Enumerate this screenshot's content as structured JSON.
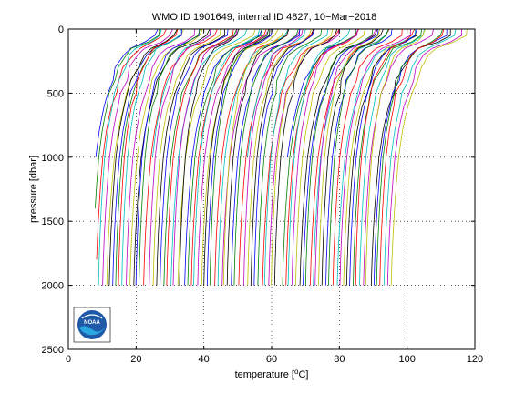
{
  "chart_data": {
    "type": "line",
    "title": "WMO ID 1901649, internal ID 4827, 10−Mar−2018",
    "xlabel_pre": "temperature [",
    "xlabel_sup": "o",
    "xlabel_post": "C]",
    "ylabel": "pressure [dbar]",
    "xlim": [
      0,
      120
    ],
    "ylim": [
      2500,
      0
    ],
    "y_reversed": true,
    "grid": true,
    "grid_style": "dotted",
    "x_ticks": [
      "0",
      "20",
      "40",
      "60",
      "80",
      "100",
      "120"
    ],
    "y_ticks": [
      "0",
      "500",
      "1000",
      "1500",
      "2000",
      "2500"
    ],
    "series_description": "Offset temperature profiles, each successive profile shifted by 1 degree C",
    "series_start_offset": 4,
    "series_count": 90,
    "series_colors": [
      "#0000ff",
      "#008000",
      "#ff0000",
      "#00bfbf",
      "#bf00bf",
      "#bfbf00",
      "#000000"
    ],
    "typical_profile": {
      "pressure": [
        0,
        50,
        100,
        150,
        200,
        300,
        400,
        500,
        600,
        700,
        800,
        900,
        1000,
        1200,
        1400,
        1600,
        1800,
        2000
      ],
      "temperature": [
        22.5,
        22.0,
        19.0,
        14.5,
        12.5,
        10.3,
        8.8,
        7.6,
        6.6,
        5.8,
        5.1,
        4.6,
        4.1,
        3.5,
        3.0,
        2.6,
        2.3,
        2.1
      ]
    },
    "logo": "NOAA"
  }
}
